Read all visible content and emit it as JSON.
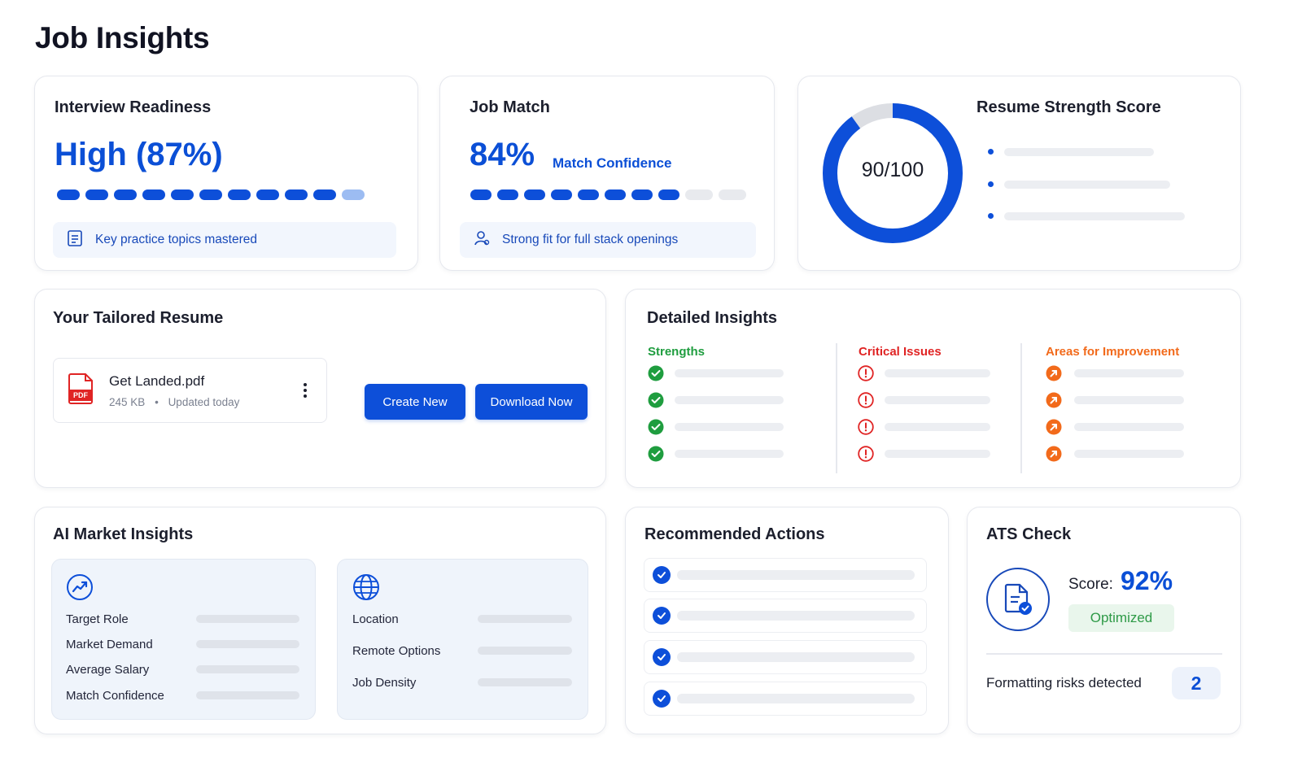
{
  "page": {
    "title": "Job Insights"
  },
  "interview_readiness": {
    "title": "Interview Readiness",
    "value": "High (87%)",
    "progress_percent": 87,
    "info": "Key practice topics mastered",
    "info_icon": "checklist-icon"
  },
  "job_match": {
    "title": "Job Match",
    "value": "84%",
    "value_label": "Match Confidence",
    "progress_percent": 84,
    "info": "Strong fit for full stack openings",
    "info_icon": "user-icon"
  },
  "resume_strength": {
    "title": "Resume Strength Score",
    "score_text": "90/100",
    "score": 90,
    "max": 100,
    "accent": "#0d4fd9"
  },
  "tailored_resume": {
    "title": "Your Tailored Resume",
    "file_name": "Get Landed.pdf",
    "file_size": "245 KB",
    "file_updated": "Updated today",
    "file_badge": "PDF",
    "create_label": "Create New",
    "download_label": "Download Now"
  },
  "detailed_insights": {
    "title": "Detailed Insights",
    "columns": [
      {
        "label": "Strengths",
        "color": "#1f9d3f",
        "icon": "check-circle-icon"
      },
      {
        "label": "Critical Issues",
        "color": "#e02424",
        "icon": "alert-circle-icon"
      },
      {
        "label": "Areas for Improvement",
        "color": "#f26a1b",
        "icon": "arrow-up-right-icon"
      }
    ]
  },
  "market_insights": {
    "title": "AI Market Insights",
    "left_icon": "trending-up-icon",
    "left_items": [
      "Target Role",
      "Market Demand",
      "Average Salary",
      "Match Confidence"
    ],
    "right_icon": "globe-icon",
    "right_items": [
      "Location",
      "Remote Options",
      "Job Density"
    ]
  },
  "recommended_actions": {
    "title": "Recommended Actions",
    "count": 4
  },
  "ats_check": {
    "title": "ATS Check",
    "score_label": "Score:",
    "score_value": "92%",
    "status": "Optimized",
    "risks_label": "Formatting risks detected",
    "risks_count": "2",
    "status_color": "#2e9a47"
  }
}
